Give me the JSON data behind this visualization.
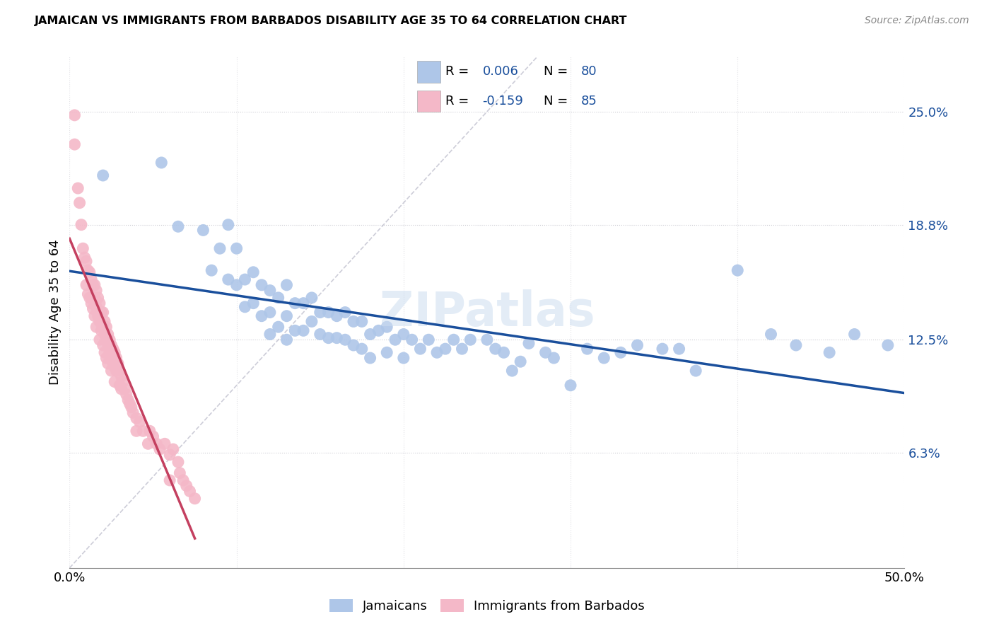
{
  "title": "JAMAICAN VS IMMIGRANTS FROM BARBADOS DISABILITY AGE 35 TO 64 CORRELATION CHART",
  "source": "Source: ZipAtlas.com",
  "ylabel": "Disability Age 35 to 64",
  "ytick_labels": [
    "25.0%",
    "18.8%",
    "12.5%",
    "6.3%"
  ],
  "ytick_values": [
    0.25,
    0.188,
    0.125,
    0.063
  ],
  "xlim": [
    0.0,
    0.5
  ],
  "ylim": [
    0.0,
    0.28
  ],
  "legend_label1": "Jamaicans",
  "legend_label2": "Immigrants from Barbados",
  "r1": "0.006",
  "n1": "80",
  "r2": "-0.159",
  "n2": "85",
  "color_blue": "#aec6e8",
  "color_pink": "#f4b8c8",
  "line_color_blue": "#1a4f9c",
  "line_color_pink": "#c44060",
  "watermark": "ZIPatlas",
  "jamaicans_x": [
    0.02,
    0.055,
    0.065,
    0.08,
    0.085,
    0.09,
    0.095,
    0.095,
    0.1,
    0.1,
    0.105,
    0.105,
    0.11,
    0.11,
    0.115,
    0.115,
    0.12,
    0.12,
    0.12,
    0.125,
    0.125,
    0.13,
    0.13,
    0.13,
    0.135,
    0.135,
    0.14,
    0.14,
    0.145,
    0.145,
    0.15,
    0.15,
    0.155,
    0.155,
    0.16,
    0.16,
    0.165,
    0.165,
    0.17,
    0.17,
    0.175,
    0.175,
    0.18,
    0.18,
    0.185,
    0.19,
    0.19,
    0.195,
    0.2,
    0.2,
    0.205,
    0.21,
    0.215,
    0.22,
    0.225,
    0.23,
    0.235,
    0.24,
    0.25,
    0.255,
    0.26,
    0.265,
    0.27,
    0.275,
    0.285,
    0.29,
    0.3,
    0.31,
    0.32,
    0.33,
    0.34,
    0.355,
    0.365,
    0.375,
    0.4,
    0.42,
    0.435,
    0.455,
    0.47,
    0.49
  ],
  "jamaicans_y": [
    0.215,
    0.222,
    0.187,
    0.185,
    0.163,
    0.175,
    0.188,
    0.158,
    0.175,
    0.155,
    0.158,
    0.143,
    0.162,
    0.145,
    0.155,
    0.138,
    0.152,
    0.14,
    0.128,
    0.148,
    0.132,
    0.155,
    0.138,
    0.125,
    0.145,
    0.13,
    0.145,
    0.13,
    0.148,
    0.135,
    0.14,
    0.128,
    0.14,
    0.126,
    0.138,
    0.126,
    0.14,
    0.125,
    0.135,
    0.122,
    0.135,
    0.12,
    0.128,
    0.115,
    0.13,
    0.132,
    0.118,
    0.125,
    0.128,
    0.115,
    0.125,
    0.12,
    0.125,
    0.118,
    0.12,
    0.125,
    0.12,
    0.125,
    0.125,
    0.12,
    0.118,
    0.108,
    0.113,
    0.123,
    0.118,
    0.115,
    0.1,
    0.12,
    0.115,
    0.118,
    0.122,
    0.12,
    0.12,
    0.108,
    0.163,
    0.128,
    0.122,
    0.118,
    0.128,
    0.122
  ],
  "barbados_x": [
    0.003,
    0.003,
    0.005,
    0.006,
    0.007,
    0.008,
    0.009,
    0.01,
    0.01,
    0.011,
    0.011,
    0.012,
    0.012,
    0.013,
    0.013,
    0.014,
    0.014,
    0.015,
    0.015,
    0.015,
    0.016,
    0.016,
    0.016,
    0.017,
    0.017,
    0.018,
    0.018,
    0.018,
    0.019,
    0.019,
    0.02,
    0.02,
    0.02,
    0.021,
    0.021,
    0.021,
    0.022,
    0.022,
    0.022,
    0.023,
    0.023,
    0.023,
    0.024,
    0.024,
    0.025,
    0.025,
    0.025,
    0.026,
    0.026,
    0.027,
    0.027,
    0.027,
    0.028,
    0.028,
    0.029,
    0.03,
    0.03,
    0.031,
    0.031,
    0.032,
    0.033,
    0.034,
    0.035,
    0.036,
    0.037,
    0.038,
    0.04,
    0.04,
    0.042,
    0.044,
    0.047,
    0.048,
    0.05,
    0.052,
    0.054,
    0.057,
    0.06,
    0.06,
    0.062,
    0.065,
    0.066,
    0.068,
    0.07,
    0.072,
    0.075
  ],
  "barbados_y": [
    0.248,
    0.232,
    0.208,
    0.2,
    0.188,
    0.175,
    0.17,
    0.168,
    0.155,
    0.163,
    0.15,
    0.162,
    0.148,
    0.158,
    0.145,
    0.155,
    0.142,
    0.155,
    0.148,
    0.138,
    0.152,
    0.143,
    0.132,
    0.148,
    0.138,
    0.145,
    0.135,
    0.125,
    0.14,
    0.13,
    0.14,
    0.132,
    0.122,
    0.135,
    0.128,
    0.118,
    0.132,
    0.125,
    0.115,
    0.128,
    0.122,
    0.112,
    0.125,
    0.118,
    0.122,
    0.115,
    0.108,
    0.12,
    0.112,
    0.118,
    0.11,
    0.102,
    0.115,
    0.108,
    0.112,
    0.108,
    0.1,
    0.105,
    0.098,
    0.102,
    0.098,
    0.095,
    0.092,
    0.09,
    0.088,
    0.085,
    0.082,
    0.075,
    0.08,
    0.075,
    0.068,
    0.075,
    0.072,
    0.068,
    0.065,
    0.068,
    0.062,
    0.048,
    0.065,
    0.058,
    0.052,
    0.048,
    0.045,
    0.042,
    0.038
  ]
}
